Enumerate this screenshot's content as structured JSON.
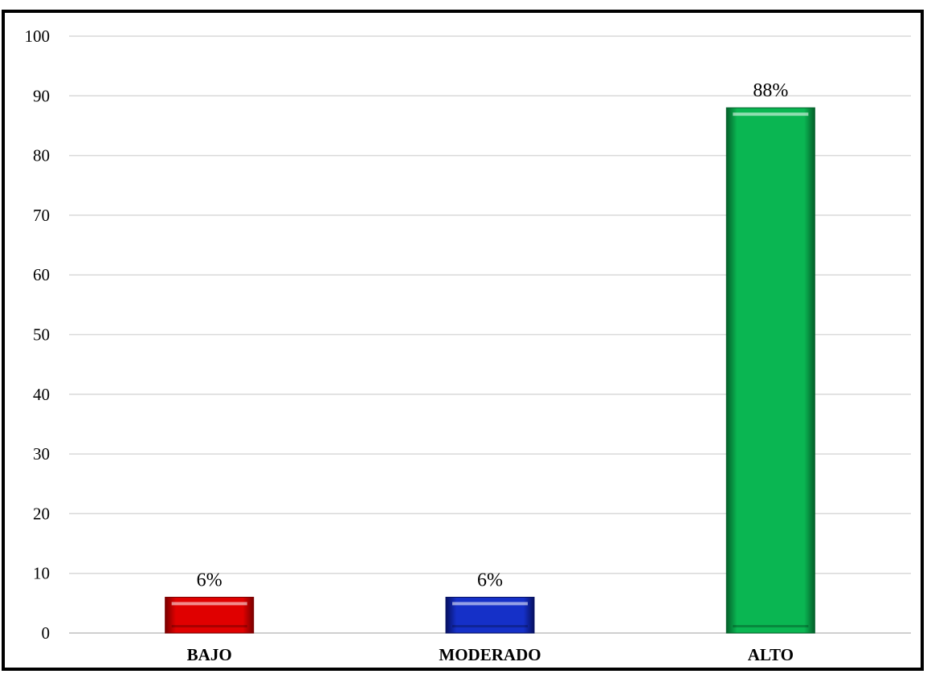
{
  "chart_data": {
    "type": "bar",
    "categories": [
      "BAJO",
      "MODERADO",
      "ALTO"
    ],
    "values": [
      6,
      6,
      88
    ],
    "data_labels": [
      "6%",
      "6%",
      "88%"
    ],
    "ylim": [
      0,
      100
    ],
    "yticks": [
      0,
      10,
      20,
      30,
      40,
      50,
      60,
      70,
      80,
      90,
      100
    ],
    "grid": true,
    "legend": "none",
    "bar_colors": [
      "#e00000",
      "#1530c8",
      "#0ab652"
    ],
    "bar_dark_colors": [
      "#7a0000",
      "#061060",
      "#04602a"
    ]
  }
}
